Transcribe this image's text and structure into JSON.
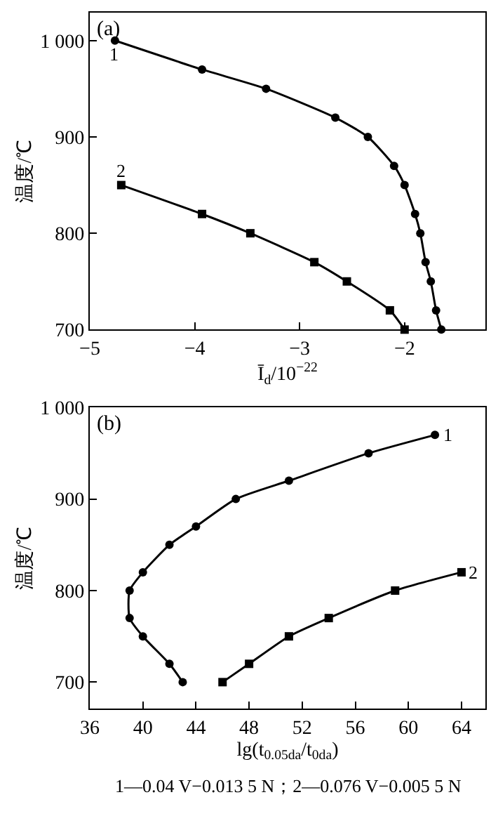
{
  "chart_data": [
    {
      "type": "line",
      "title": "(a)",
      "xlabel": "Ī$_{d}$/10$^{−22}$",
      "ylabel": "温度/℃",
      "xlim": [
        -5,
        -1.23
      ],
      "ylim": [
        700,
        1029
      ],
      "xticks": [
        -5,
        -4,
        -3,
        -2
      ],
      "yticks": [
        700,
        800,
        900,
        {
          "value": 1000,
          "label": "1 000"
        }
      ],
      "line_style": "solid",
      "series": [
        {
          "name": "1",
          "color": "#000000",
          "marker": "circle",
          "x": [
            -4.76,
            -3.93,
            -3.32,
            -2.66,
            -2.35,
            -2.1,
            -2.0,
            -1.9,
            -1.85,
            -1.8,
            -1.75,
            -1.7,
            -1.65
          ],
          "values": [
            1000,
            970,
            950,
            920,
            900,
            870,
            850,
            820,
            800,
            770,
            750,
            720,
            700
          ]
        },
        {
          "name": "2",
          "color": "#000000",
          "marker": "square",
          "x": [
            -4.7,
            -3.93,
            -3.47,
            -2.86,
            -2.55,
            -2.14,
            -2.0
          ],
          "values": [
            850,
            820,
            800,
            770,
            750,
            720,
            700
          ]
        }
      ]
    },
    {
      "type": "line",
      "title": "(b)",
      "xlabel": "lg(t$_{0.05da}$/t$_{0da}$)",
      "ylabel": "温度/℃",
      "xlim": [
        36,
        65.8
      ],
      "ylim": [
        671,
        1000
      ],
      "xticks": [
        36,
        40,
        44,
        48,
        52,
        56,
        60,
        64
      ],
      "yticks": [
        700,
        800,
        900,
        {
          "value": 1000,
          "label": "1 000"
        }
      ],
      "line_style": "solid",
      "annotations": [
        "1—0.04 V−0.013 5 N；2—0.076 V−0.005 5 N"
      ],
      "series": [
        {
          "name": "1",
          "color": "#000000",
          "marker": "circle",
          "x": [
            62,
            57,
            51,
            47,
            44,
            42,
            40,
            39,
            39,
            40,
            42,
            43
          ],
          "values": [
            970,
            950,
            920,
            900,
            870,
            850,
            820,
            800,
            770,
            750,
            720,
            700
          ]
        },
        {
          "name": "2",
          "color": "#000000",
          "marker": "square",
          "x": [
            46,
            48,
            51,
            54,
            59,
            64
          ],
          "values": [
            700,
            720,
            750,
            770,
            800,
            820
          ]
        }
      ]
    }
  ]
}
